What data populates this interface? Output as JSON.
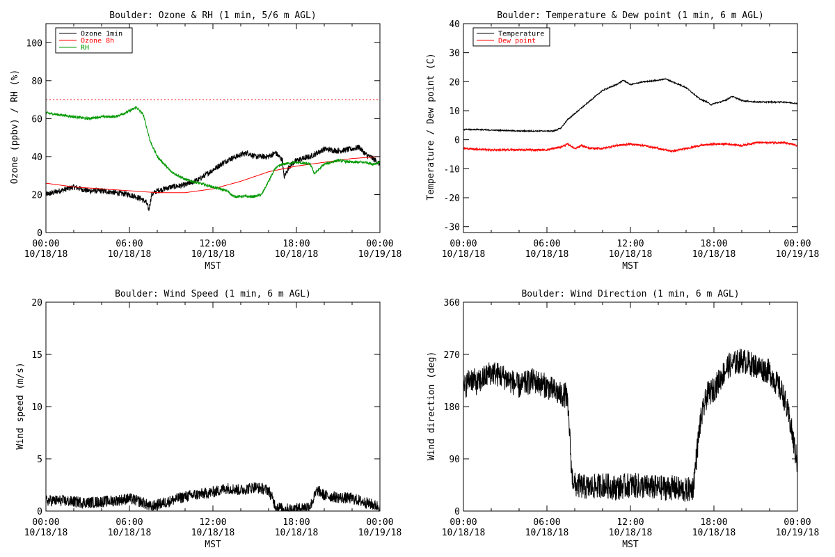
{
  "chart_data": [
    {
      "type": "line",
      "title": "Boulder: Ozone & RH (1 min, 5/6 m AGL)",
      "xlabel": "MST",
      "ylabel": "Ozone (ppbv) / RH (%)",
      "xlim": [
        0,
        24
      ],
      "ylim": [
        0,
        110
      ],
      "xticks": [
        {
          "v": 0,
          "l1": "00:00",
          "l2": "10/18/18"
        },
        {
          "v": 6,
          "l1": "06:00",
          "l2": "10/18/18"
        },
        {
          "v": 12,
          "l1": "12:00",
          "l2": "10/18/18"
        },
        {
          "v": 18,
          "l1": "18:00",
          "l2": "10/18/18"
        },
        {
          "v": 24,
          "l1": "00:00",
          "l2": "10/19/18"
        }
      ],
      "yticks": [
        0,
        20,
        40,
        60,
        80,
        100
      ],
      "grid": false,
      "legend": "top-left",
      "series": [
        {
          "name": "Ozone 1min",
          "color": "#000000",
          "noise": 1.5,
          "style": "solid",
          "x": [
            0,
            1,
            2,
            3,
            4,
            5,
            6,
            6.8,
            7.2,
            7.4,
            7.6,
            8,
            9,
            10,
            11,
            12,
            13,
            14,
            14.5,
            15,
            16,
            16.5,
            17,
            17.1,
            17.5,
            18,
            19,
            20,
            21,
            22,
            22.5,
            23,
            23.5,
            24
          ],
          "y": [
            20,
            22,
            24,
            22,
            22,
            21,
            20,
            18,
            16,
            12,
            20,
            22,
            24,
            25,
            28,
            33,
            38,
            41,
            42,
            40,
            40,
            42,
            38,
            29,
            35,
            38,
            40,
            44,
            43,
            44,
            45,
            41,
            39,
            36
          ]
        },
        {
          "name": "Ozone 8h",
          "color": "#ff0000",
          "noise": 0,
          "style": "solid",
          "x": [
            0,
            2,
            4,
            6,
            8,
            10,
            12,
            14,
            16,
            18,
            20,
            22,
            24
          ],
          "y": [
            26,
            24,
            23,
            22,
            21,
            21,
            23,
            27,
            32,
            35,
            37,
            39,
            40
          ]
        },
        {
          "name": "",
          "color": "#ff0000",
          "noise": 0,
          "style": "dotted",
          "x": [
            0,
            24
          ],
          "y": [
            70,
            70
          ]
        },
        {
          "name": "RH",
          "color": "#009900",
          "noise": 0.7,
          "style": "solid",
          "x": [
            0,
            1,
            2,
            3,
            4,
            5,
            6,
            6.5,
            7,
            7.5,
            8,
            9,
            10,
            11,
            12,
            13,
            13.5,
            14,
            15,
            15.5,
            16,
            16.5,
            17,
            18,
            19,
            19.3,
            20,
            21,
            22,
            23,
            23.5,
            24
          ],
          "y": [
            63,
            62,
            61,
            60,
            61,
            61,
            64,
            66,
            62,
            48,
            40,
            32,
            28,
            26,
            24,
            22,
            19,
            19,
            19,
            20,
            27,
            34,
            36,
            37,
            36,
            31,
            36,
            38,
            37,
            37,
            36,
            37
          ]
        }
      ]
    },
    {
      "type": "line",
      "title": "Boulder: Temperature & Dew point (1 min, 6 m AGL)",
      "xlabel": "MST",
      "ylabel": "Temperature / Dew point (C)",
      "xlim": [
        0,
        24
      ],
      "ylim": [
        -32,
        40
      ],
      "xticks": [
        {
          "v": 0,
          "l1": "00:00",
          "l2": "10/18/18"
        },
        {
          "v": 6,
          "l1": "06:00",
          "l2": "10/18/18"
        },
        {
          "v": 12,
          "l1": "12:00",
          "l2": "10/18/18"
        },
        {
          "v": 18,
          "l1": "18:00",
          "l2": "10/18/18"
        },
        {
          "v": 24,
          "l1": "00:00",
          "l2": "10/19/18"
        }
      ],
      "yticks": [
        -30,
        -20,
        -10,
        0,
        10,
        20,
        30,
        40
      ],
      "grid": false,
      "legend": "top-left",
      "series": [
        {
          "name": "Temperature",
          "color": "#000000",
          "noise": 0.2,
          "style": "solid",
          "x": [
            0,
            1,
            2,
            3,
            4,
            5,
            6,
            6.5,
            7,
            7.5,
            8,
            9,
            10,
            11,
            11.5,
            12,
            13,
            14,
            14.5,
            15,
            16,
            16.5,
            17,
            17.5,
            17.8,
            18,
            18.5,
            19,
            19.3,
            20,
            21,
            22,
            23,
            24
          ],
          "y": [
            3.5,
            3.5,
            3.3,
            3.2,
            3.0,
            3.0,
            3.0,
            3.0,
            4.0,
            7.0,
            9.0,
            13.0,
            17.0,
            19.0,
            20.5,
            19.0,
            20.0,
            20.5,
            21.0,
            20.0,
            18.0,
            16.0,
            14.0,
            13.0,
            12.0,
            12.5,
            13.0,
            14.0,
            15.0,
            13.5,
            13.0,
            13.0,
            13.0,
            12.5
          ]
        },
        {
          "name": "Dew point",
          "color": "#ff0000",
          "noise": 0.35,
          "style": "solid",
          "x": [
            0,
            2,
            4,
            6,
            7,
            7.5,
            8,
            8.5,
            9,
            10,
            11,
            12,
            13,
            14,
            15,
            16,
            17,
            18,
            19,
            20,
            21,
            22,
            23,
            24
          ],
          "y": [
            -3,
            -3.5,
            -3.5,
            -3.5,
            -2.5,
            -1.5,
            -3,
            -2,
            -3,
            -3,
            -2,
            -1.5,
            -2,
            -3,
            -4,
            -3,
            -2,
            -1.5,
            -1.5,
            -2,
            -1,
            -1,
            -1,
            -2
          ]
        }
      ]
    },
    {
      "type": "line",
      "title": "Boulder: Wind Speed (1 min, 6 m AGL)",
      "xlabel": "MST",
      "ylabel": "Wind speed (m/s)",
      "xlim": [
        0,
        24
      ],
      "ylim": [
        0,
        20
      ],
      "xticks": [
        {
          "v": 0,
          "l1": "00:00",
          "l2": "10/18/18"
        },
        {
          "v": 6,
          "l1": "06:00",
          "l2": "10/18/18"
        },
        {
          "v": 12,
          "l1": "12:00",
          "l2": "10/18/18"
        },
        {
          "v": 18,
          "l1": "18:00",
          "l2": "10/18/18"
        },
        {
          "v": 24,
          "l1": "00:00",
          "l2": "10/19/18"
        }
      ],
      "yticks": [
        0,
        5,
        10,
        15,
        20
      ],
      "grid": false,
      "legend": "none",
      "series": [
        {
          "name": "",
          "color": "#000000",
          "noise": 0.55,
          "style": "solid",
          "x": [
            0,
            1,
            2,
            3,
            4,
            5,
            6,
            7,
            7.5,
            8,
            9,
            10,
            11,
            12,
            13,
            14,
            15,
            16,
            16.5,
            17,
            18,
            19,
            19.5,
            20,
            21,
            22,
            23,
            24
          ],
          "y": [
            1.0,
            1.0,
            0.9,
            0.8,
            0.9,
            1.0,
            1.2,
            0.8,
            0.4,
            0.6,
            1.0,
            1.4,
            1.6,
            1.8,
            2.2,
            2.0,
            2.3,
            2.0,
            0.5,
            0.2,
            0.2,
            0.5,
            2.0,
            1.5,
            1.3,
            1.2,
            0.8,
            0.4
          ]
        }
      ]
    },
    {
      "type": "line",
      "title": "Boulder: Wind Direction (1 min, 6 m AGL)",
      "xlabel": "MST",
      "ylabel": "Wind direction (deg)",
      "xlim": [
        0,
        24
      ],
      "ylim": [
        0,
        360
      ],
      "xticks": [
        {
          "v": 0,
          "l1": "00:00",
          "l2": "10/18/18"
        },
        {
          "v": 6,
          "l1": "06:00",
          "l2": "10/18/18"
        },
        {
          "v": 12,
          "l1": "12:00",
          "l2": "10/18/18"
        },
        {
          "v": 18,
          "l1": "18:00",
          "l2": "10/18/18"
        },
        {
          "v": 24,
          "l1": "00:00",
          "l2": "10/19/18"
        }
      ],
      "yticks": [
        0,
        90,
        180,
        270,
        360
      ],
      "grid": false,
      "legend": "none",
      "series": [
        {
          "name": "",
          "color": "#000000",
          "noise": 22,
          "style": "solid",
          "x": [
            0,
            0.5,
            1,
            2,
            3,
            4,
            5,
            6,
            7,
            7.4,
            7.6,
            7.7,
            7.8,
            8,
            9,
            10,
            11,
            12,
            13,
            14,
            15,
            16,
            16.5,
            17,
            17.5,
            18,
            19,
            20,
            21,
            22,
            23,
            23.5,
            24
          ],
          "y": [
            210,
            230,
            220,
            240,
            230,
            215,
            225,
            215,
            200,
            200,
            150,
            100,
            60,
            45,
            40,
            45,
            40,
            45,
            42,
            40,
            40,
            35,
            40,
            150,
            200,
            210,
            250,
            260,
            250,
            240,
            200,
            150,
            80
          ]
        }
      ]
    }
  ]
}
